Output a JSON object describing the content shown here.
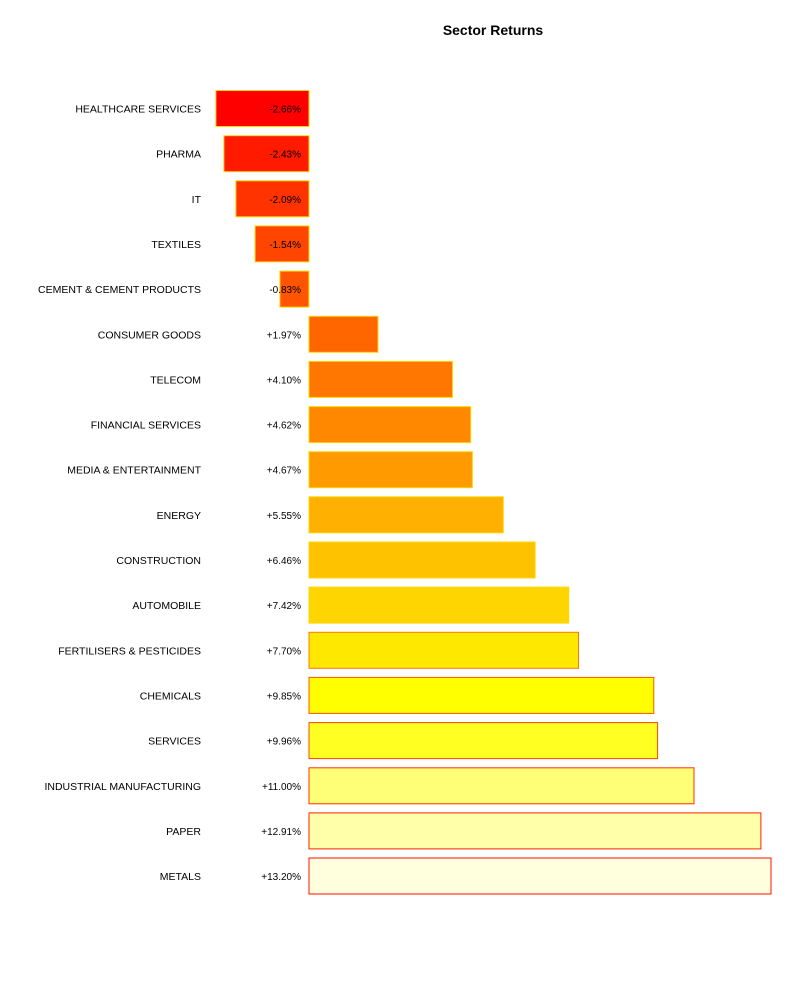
{
  "chart_data": {
    "type": "bar",
    "orientation": "horizontal",
    "title": "Sector Returns",
    "xlabel": "",
    "ylabel": "",
    "unit": "%",
    "categories": [
      "HEALTHCARE SERVICES",
      "PHARMA",
      "IT",
      "TEXTILES",
      "CEMENT & CEMENT PRODUCTS",
      "CONSUMER GOODS",
      "TELECOM",
      "FINANCIAL SERVICES",
      "MEDIA & ENTERTAINMENT",
      "ENERGY",
      "CONSTRUCTION",
      "AUTOMOBILE",
      "FERTILISERS & PESTICIDES",
      "CHEMICALS",
      "SERVICES",
      "INDUSTRIAL MANUFACTURING",
      "PAPER",
      "METALS"
    ],
    "values": [
      -2.66,
      -2.43,
      -2.09,
      -1.54,
      -0.83,
      1.97,
      4.1,
      4.62,
      4.67,
      5.55,
      6.46,
      7.42,
      7.7,
      9.85,
      9.96,
      11.0,
      12.91,
      13.2
    ],
    "labels": [
      "-2.66%",
      "-2.43%",
      "-2.09%",
      "-1.54%",
      "-0.83%",
      "+1.97%",
      "+4.10%",
      "+4.62%",
      "+4.67%",
      "+5.55%",
      "+6.46%",
      "+7.42%",
      "+7.70%",
      "+9.85%",
      "+9.96%",
      "+11.00%",
      "+12.91%",
      "+13.20%"
    ],
    "colors": [
      "#ff0000",
      "#ff1a00",
      "#ff3300",
      "#ff4500",
      "#ff5500",
      "#ff6600",
      "#ff7700",
      "#ff8800",
      "#ff9a00",
      "#ffb000",
      "#ffc200",
      "#ffd500",
      "#ffe800",
      "#ffff00",
      "#ffff22",
      "#ffff77",
      "#ffffaa",
      "#ffffdd"
    ],
    "border_colors": [
      "#ffd700",
      "#ffd700",
      "#ffd700",
      "#ffd700",
      "#ffd700",
      "#ffd700",
      "#ffd700",
      "#ffd700",
      "#ffd700",
      "#ffd700",
      "#ffd700",
      "#ffd700",
      "#ff7700",
      "#ff5500",
      "#ff4400",
      "#ff3300",
      "#ff2200",
      "#ff1100"
    ],
    "xlim": [
      -2.66,
      13.2
    ],
    "grid": false,
    "legend": "none"
  }
}
